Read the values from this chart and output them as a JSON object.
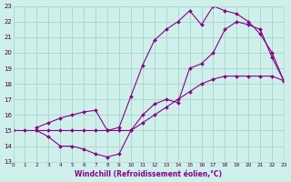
{
  "xlabel": "Windchill (Refroidissement éolien,°C)",
  "bg_color": "#cff0ea",
  "grid_color": "#aad8d0",
  "line_color": "#880088",
  "xlim": [
    0,
    23
  ],
  "ylim": [
    13,
    23
  ],
  "xticks": [
    0,
    1,
    2,
    3,
    4,
    5,
    6,
    7,
    8,
    9,
    10,
    11,
    12,
    13,
    14,
    15,
    16,
    17,
    18,
    19,
    20,
    21,
    22,
    23
  ],
  "yticks": [
    13,
    14,
    15,
    16,
    17,
    18,
    19,
    20,
    21,
    22,
    23
  ],
  "line1_x": [
    0,
    1,
    2,
    3,
    4,
    5,
    6,
    7,
    8,
    9,
    10,
    11,
    12,
    13,
    14,
    15,
    16,
    17,
    18,
    19,
    20,
    21,
    22,
    23
  ],
  "line1_y": [
    15,
    15,
    15,
    15,
    15,
    15,
    15,
    15,
    15,
    15,
    15,
    15.5,
    16,
    16.5,
    17,
    17.5,
    18,
    18.3,
    18.5,
    18.5,
    18.5,
    18.5,
    18.5,
    18.2
  ],
  "line2_x": [
    2,
    3,
    4,
    5,
    6,
    7,
    8,
    9,
    10,
    11,
    12,
    13,
    14,
    15,
    16,
    17,
    18,
    19,
    20,
    21,
    22,
    23
  ],
  "line2_y": [
    15,
    14.6,
    14.0,
    14.0,
    13.8,
    13.5,
    13.3,
    13.5,
    15.0,
    16.0,
    16.7,
    17.0,
    16.8,
    19.0,
    19.3,
    20.0,
    21.5,
    22.0,
    21.8,
    21.5,
    19.7,
    18.2
  ],
  "line3_x": [
    2,
    3,
    4,
    5,
    6,
    7,
    8,
    9,
    10,
    11,
    12,
    13,
    14,
    15,
    16,
    17,
    18,
    19,
    20,
    21,
    22,
    23
  ],
  "line3_y": [
    15.2,
    15.5,
    15.8,
    16.0,
    16.2,
    16.3,
    15.0,
    15.2,
    17.2,
    19.2,
    20.8,
    21.5,
    22.0,
    22.7,
    21.8,
    23.0,
    22.7,
    22.5,
    22.0,
    21.2,
    20.0,
    18.2
  ]
}
